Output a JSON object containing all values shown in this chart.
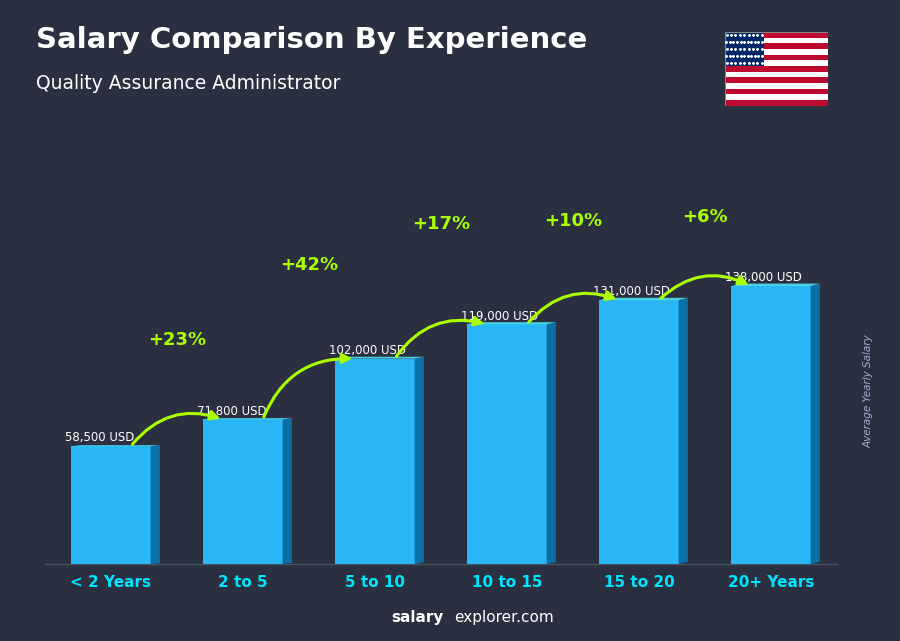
{
  "title": "Salary Comparison By Experience",
  "subtitle": "Quality Assurance Administrator",
  "categories": [
    "< 2 Years",
    "2 to 5",
    "5 to 10",
    "10 to 15",
    "15 to 20",
    "20+ Years"
  ],
  "values": [
    58500,
    71800,
    102000,
    119000,
    131000,
    138000
  ],
  "value_labels": [
    "58,500 USD",
    "71,800 USD",
    "102,000 USD",
    "119,000 USD",
    "131,000 USD",
    "138,000 USD"
  ],
  "pct_labels": [
    "+23%",
    "+42%",
    "+17%",
    "+10%",
    "+6%"
  ],
  "bar_color_main": "#29b6f6",
  "bar_color_right": "#0d6fa8",
  "bar_color_top": "#4dd0e1",
  "pct_label_color": "#aaff00",
  "arrow_color": "#aaff00",
  "xlabel_color": "#00e5ff",
  "value_label_color": "#ffffff",
  "title_color": "#ffffff",
  "subtitle_color": "#ffffff",
  "watermark_bold": "salary",
  "watermark_normal": "explorer.com",
  "ylabel_text": "Average Yearly Salary",
  "bar_width": 0.6,
  "ylim": [
    0,
    175000
  ],
  "bg_color": "#2a3040"
}
